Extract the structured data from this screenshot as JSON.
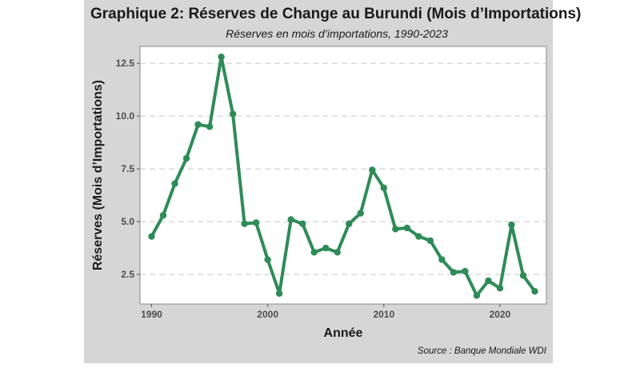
{
  "chart_data": {
    "type": "line",
    "title": "Graphique 2: Réserves de Change au Burundi (Mois d’Importations)",
    "subtitle": "Réserves en mois d’importations, 1990-2023",
    "xlabel": "Année",
    "ylabel": "Réserves (Mois d’Importations)",
    "caption": "Source : Banque Mondiale WDI",
    "xlim": [
      1989,
      2024
    ],
    "ylim": [
      1.1,
      13.3
    ],
    "x_ticks": [
      1990,
      2000,
      2010,
      2020
    ],
    "x_tick_labels": [
      "1990",
      "2000",
      "2010",
      "2020"
    ],
    "y_ticks": [
      2.5,
      5.0,
      7.5,
      10.0,
      12.5
    ],
    "y_tick_labels": [
      "2.5",
      "5.0",
      "7.5",
      "10.0",
      "12.5"
    ],
    "grid": "horizontal dashed",
    "line_color": "#2e8b57",
    "x": [
      1990,
      1991,
      1992,
      1993,
      1994,
      1995,
      1996,
      1997,
      1998,
      1999,
      2000,
      2001,
      2002,
      2003,
      2004,
      2005,
      2006,
      2007,
      2008,
      2009,
      2010,
      2011,
      2012,
      2013,
      2014,
      2015,
      2016,
      2017,
      2018,
      2019,
      2020,
      2021,
      2022,
      2023
    ],
    "values": [
      4.3,
      5.3,
      6.8,
      8.0,
      9.6,
      9.5,
      12.8,
      10.1,
      4.9,
      4.95,
      3.2,
      1.6,
      5.1,
      4.9,
      3.55,
      3.75,
      3.55,
      4.9,
      5.4,
      7.45,
      6.6,
      4.65,
      4.7,
      4.3,
      4.1,
      3.2,
      2.6,
      2.65,
      1.5,
      2.2,
      1.85,
      4.85,
      2.45,
      1.7
    ]
  }
}
